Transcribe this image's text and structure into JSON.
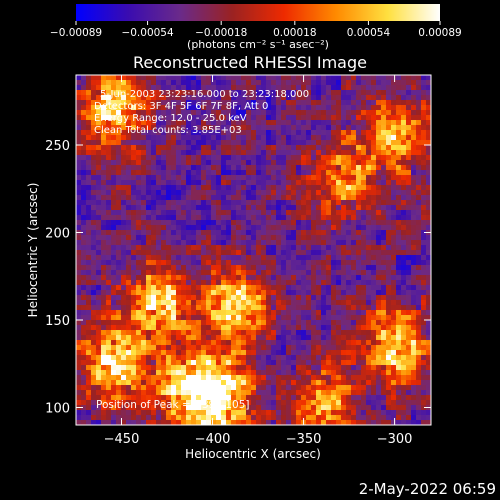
{
  "chart_data": {
    "type": "heatmap",
    "title": "Reconstructed RHESSI Image",
    "xlabel": "Heliocentric X (arcsec)",
    "ylabel": "Heliocentric Y (arcsec)",
    "xlim": [
      -475,
      -280
    ],
    "ylim": [
      90,
      290
    ],
    "x_ticks": [
      -450,
      -400,
      -350,
      -300
    ],
    "x_tick_labels": [
      "−450",
      "−400",
      "−350",
      "−300"
    ],
    "y_ticks": [
      100,
      150,
      200,
      250
    ],
    "y_tick_labels": [
      "100",
      "150",
      "200",
      "250"
    ],
    "colorbar": {
      "range": [
        -0.00089,
        0.00089
      ],
      "ticks": [
        -0.00089,
        -0.00054,
        -0.00018,
        0.00018,
        0.00054,
        0.00089
      ],
      "tick_labels": [
        "−0.00089",
        "−0.00054",
        "−0.00018",
        "0.00018",
        "0.00054",
        "0.00089"
      ],
      "units_label": "(photons cm⁻² s⁻¹ asec⁻²)",
      "colormap": [
        "#0000ff",
        "#3a0cb0",
        "#6a2a8a",
        "#9a2222",
        "#ee2a00",
        "#ff8a00",
        "#ffe040",
        "#ffffff"
      ]
    },
    "annotations": [
      "5-Jun-2003 23:23:16.000 to 23:23:18.000",
      "Detectors: 3F 4F 5F 6F 7F 8F, Att 0",
      "Energy Range: 12.0 - 25.0 keV",
      "Clean     Total counts: 3.85E+03"
    ],
    "peak_label": "Position of Peak = [-394,105]",
    "bright_regions": [
      {
        "x": -455,
        "y": 125,
        "value": 0.00089
      },
      {
        "x": -455,
        "y": 270,
        "value": 0.0008
      },
      {
        "x": -430,
        "y": 160,
        "value": 0.0007
      },
      {
        "x": -415,
        "y": 110,
        "value": 0.00075
      },
      {
        "x": -395,
        "y": 105,
        "value": 0.00089
      },
      {
        "x": -388,
        "y": 158,
        "value": 0.0008
      },
      {
        "x": -300,
        "y": 135,
        "value": 0.0008
      },
      {
        "x": -340,
        "y": 100,
        "value": 0.00065
      },
      {
        "x": -330,
        "y": 230,
        "value": 0.0005
      },
      {
        "x": -300,
        "y": 255,
        "value": 0.0006
      }
    ]
  },
  "footer_timestamp": "2-May-2022 06:59"
}
